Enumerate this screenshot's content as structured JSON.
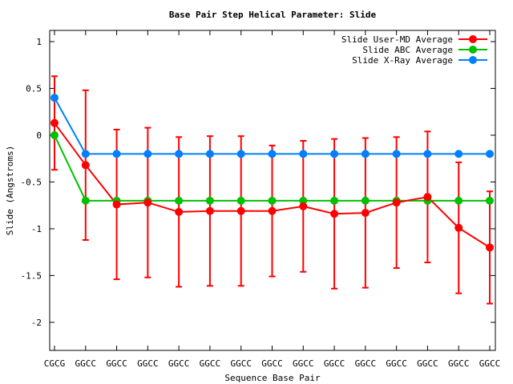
{
  "chart_data": {
    "type": "line",
    "title": "Base Pair Step Helical Parameter: Slide",
    "xlabel": "Sequence Base Pair",
    "ylabel": "Slide (Angstroms)",
    "ylim": [
      -2.3,
      1.12
    ],
    "yticks": [
      1,
      0.5,
      0,
      -0.5,
      -1,
      -1.5,
      -2
    ],
    "ytick_labels": [
      "1",
      "0.5",
      "0",
      "-0.5",
      "-1",
      "-1.5",
      "-2"
    ],
    "grid": false,
    "legend_position": "top-right",
    "categories": [
      "CGCG",
      "GGCC",
      "GGCC",
      "GGCC",
      "GGCC",
      "GGCC",
      "GGCC",
      "GGCC",
      "GGCC",
      "GGCC",
      "GGCC",
      "GGCC",
      "GGCC",
      "GGCC",
      "GGCC"
    ],
    "series": [
      {
        "name": "Slide User-MD Average",
        "color": "#ff0000",
        "values": [
          0.13,
          -0.32,
          -0.74,
          -0.72,
          -0.82,
          -0.81,
          -0.81,
          -0.81,
          -0.76,
          -0.84,
          -0.83,
          -0.72,
          -0.66,
          -0.99,
          -1.2
        ],
        "error": [
          0.5,
          0.8,
          0.8,
          0.8,
          0.8,
          0.8,
          0.8,
          0.7,
          0.7,
          0.8,
          0.8,
          0.7,
          0.7,
          0.7,
          0.6
        ]
      },
      {
        "name": "Slide ABC Average",
        "color": "#00c000",
        "values": [
          0.0,
          -0.7,
          -0.7,
          -0.7,
          -0.7,
          -0.7,
          -0.7,
          -0.7,
          -0.7,
          -0.7,
          -0.7,
          -0.7,
          -0.7,
          -0.7,
          -0.7
        ]
      },
      {
        "name": "Slide X-Ray Average",
        "color": "#0080ff",
        "values": [
          0.4,
          -0.2,
          -0.2,
          -0.2,
          -0.2,
          -0.2,
          -0.2,
          -0.2,
          -0.2,
          -0.2,
          -0.2,
          -0.2,
          -0.2,
          -0.2,
          -0.2
        ]
      }
    ]
  }
}
